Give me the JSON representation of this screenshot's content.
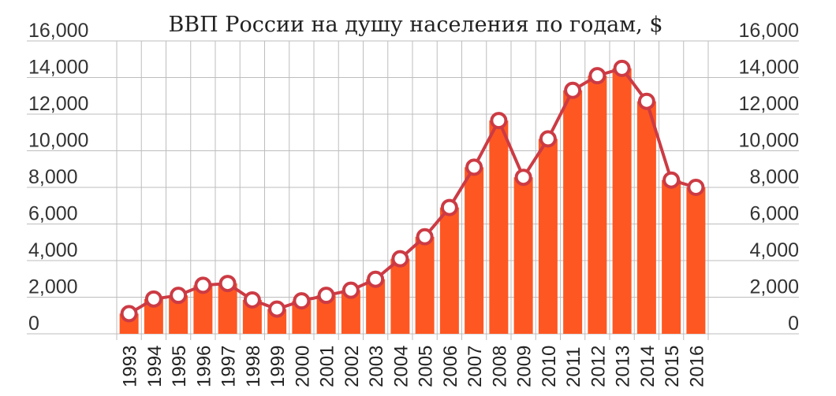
{
  "chart_data": {
    "type": "bar",
    "title": "ВВП России на душу населения по годам, $",
    "xlabel": "",
    "ylabel": "",
    "categories": [
      "1993",
      "1994",
      "1995",
      "1996",
      "1997",
      "1998",
      "1999",
      "2000",
      "2001",
      "2002",
      "2003",
      "2004",
      "2005",
      "2006",
      "2007",
      "2008",
      "2009",
      "2010",
      "2011",
      "2012",
      "2013",
      "2014",
      "2015",
      "2016"
    ],
    "series": [
      {
        "values": [
          1100,
          1900,
          2100,
          2650,
          2750,
          1850,
          1350,
          1800,
          2100,
          2380,
          2980,
          4100,
          5300,
          6900,
          9100,
          11650,
          8550,
          10650,
          13300,
          14100,
          14500,
          12700,
          8400,
          8000
        ]
      }
    ],
    "ylim": [
      0,
      16000
    ],
    "yticks": [
      0,
      2000,
      4000,
      6000,
      8000,
      10000,
      12000,
      14000,
      16000
    ],
    "ytick_labels": [
      "0",
      "2,000",
      "4,000",
      "6,000",
      "8,000",
      "10,000",
      "12,000",
      "14,000",
      "16,000"
    ],
    "grid": true,
    "legend": "none",
    "colors": {
      "bar": "#ff5722",
      "line": "#cc3b44",
      "marker_fill": "#ffffff",
      "marker_stroke": "#cc3b44",
      "grid": "#bdbdbd"
    }
  }
}
